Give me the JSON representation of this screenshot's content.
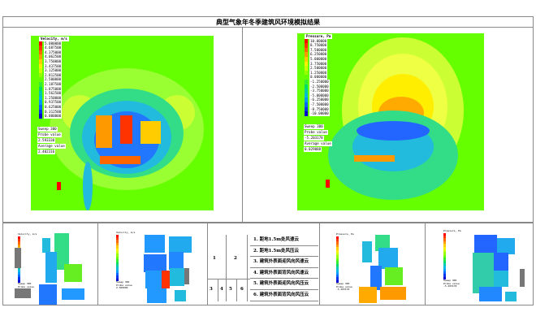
{
  "title": "典型气象年冬季建筑风环境模拟结果",
  "velocity_plot": {
    "legend_title": "Velocity, m/s",
    "levels": [
      "5.000000",
      "4.687500",
      "4.375000",
      "4.062500",
      "3.750000",
      "3.437500",
      "3.125000",
      "2.812500",
      "2.500000",
      "2.187500",
      "1.875000",
      "1.562500",
      "1.250000",
      "0.937500",
      "0.625000",
      "0.312500",
      "0.000000"
    ],
    "sweep": "Sweep 300",
    "probe_label": "Probe value",
    "probe_value": "2.593330",
    "average_label": "Average value",
    "average_value": "2.402316"
  },
  "pressure_plot": {
    "legend_title": "Pressure, Pa",
    "levels": [
      "10.00000",
      "8.750000",
      "7.500000",
      "6.250000",
      "5.000000",
      "3.750000",
      "2.500000",
      "1.250000",
      "0.000000",
      "-1.250000",
      "-2.500000",
      "-3.750000",
      "-5.000000",
      "-6.250000",
      "-7.500000",
      "-8.750000",
      "-10.00000"
    ],
    "sweep": "Sweep 300",
    "probe_label": "Probe value",
    "probe_value": "-5.203178",
    "average_label": "Average value",
    "average_value": "0.029088"
  },
  "colors": [
    "#ff0000",
    "#ff3300",
    "#ff6600",
    "#ff9900",
    "#ffcc00",
    "#ffee00",
    "#ccff00",
    "#99ff00",
    "#66ff00",
    "#33ee33",
    "#00dd66",
    "#00ccaa",
    "#00bbdd",
    "#0099ff",
    "#0066ff",
    "#0033ee",
    "#0000cc"
  ],
  "mini_panels": [
    {
      "legend_title": "Velocity, m/s",
      "sweep": "Sweep 300",
      "probe_label": "Probe value",
      "probe_value": "2.500000"
    },
    {
      "legend_title": "Velocity, m/s",
      "sweep": "Sweep 300",
      "probe_label": "Probe value",
      "probe_value": "2.500000"
    },
    {
      "legend_title": "Pressure, Pa",
      "sweep": "Sweep 300",
      "probe_label": "Probe value",
      "probe_value": "-5.203178"
    },
    {
      "legend_title": "Pressure, Pa",
      "sweep": "Sweep 300",
      "probe_label": "Probe value",
      "probe_value": "-5.203178"
    }
  ],
  "key": {
    "cells": [
      "1",
      "2",
      "3",
      "4",
      "5",
      "6"
    ],
    "items": [
      "1. 距地1.5m处风速云",
      "2. 距地1.5m处风压云",
      "3. 建筑外表面迎风向风速云",
      "4. 建筑外表面背风向风速云",
      "5. 建筑外表面迎风向风压云",
      "6. 建筑外表面背风向风压云"
    ]
  }
}
